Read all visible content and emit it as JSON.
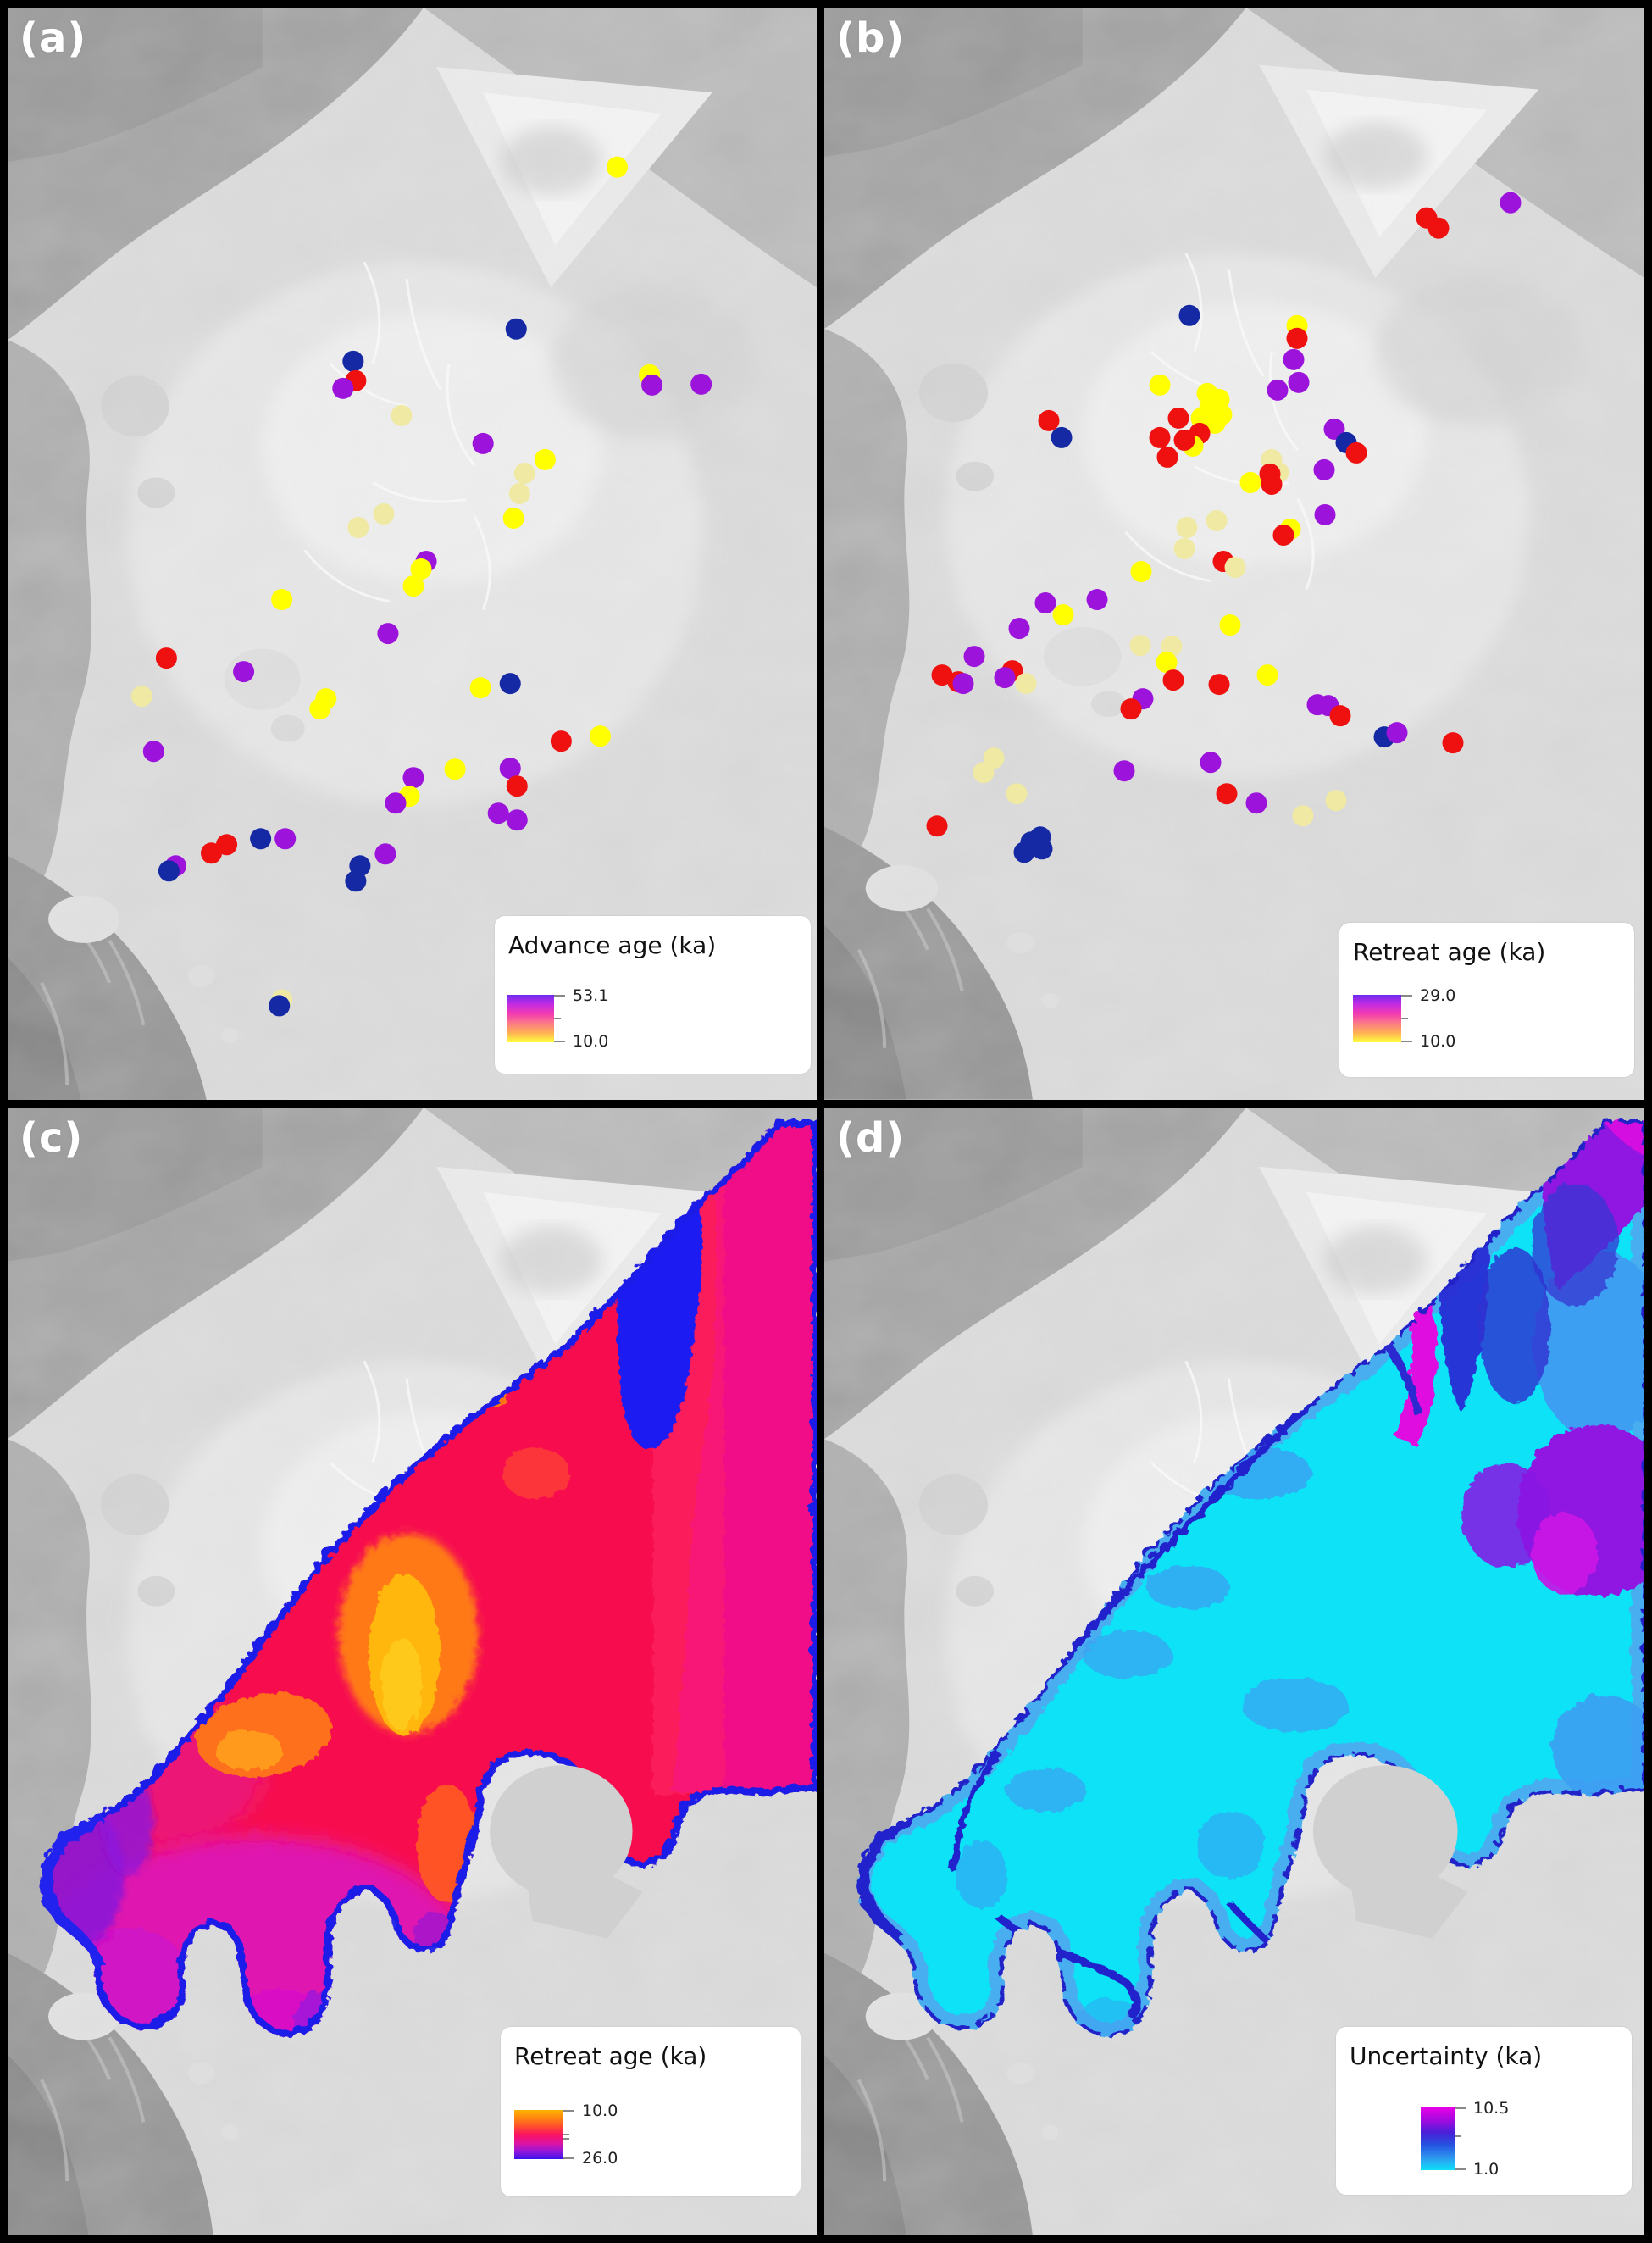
{
  "panels": [
    {
      "id": "a",
      "label": "(a)",
      "legend": {
        "title": "Advance age (ka)",
        "top_tick": "53.1",
        "bottom_tick": "10.0"
      },
      "points": [
        [
          718,
          188,
          "y"
        ],
        [
          599,
          379,
          "n"
        ],
        [
          407,
          417,
          "n"
        ],
        [
          410,
          440,
          "r"
        ],
        [
          395,
          449,
          "m"
        ],
        [
          756,
          433,
          "y"
        ],
        [
          759,
          445,
          "m"
        ],
        [
          817,
          444,
          "m"
        ],
        [
          464,
          481,
          "p"
        ],
        [
          560,
          514,
          "m"
        ],
        [
          633,
          533,
          "y"
        ],
        [
          609,
          549,
          "p"
        ],
        [
          603,
          573,
          "p"
        ],
        [
          596,
          602,
          "y"
        ],
        [
          443,
          597,
          "p"
        ],
        [
          413,
          613,
          "p"
        ],
        [
          493,
          653,
          "m"
        ],
        [
          487,
          662,
          "y"
        ],
        [
          478,
          682,
          "y"
        ],
        [
          323,
          698,
          "y"
        ],
        [
          448,
          738,
          "m"
        ],
        [
          187,
          767,
          "r"
        ],
        [
          278,
          783,
          "m"
        ],
        [
          592,
          797,
          "n"
        ],
        [
          557,
          802,
          "y"
        ],
        [
          158,
          812,
          "p"
        ],
        [
          375,
          815,
          "y"
        ],
        [
          368,
          827,
          "y"
        ],
        [
          698,
          859,
          "y"
        ],
        [
          652,
          865,
          "r"
        ],
        [
          172,
          877,
          "m"
        ],
        [
          527,
          898,
          "y"
        ],
        [
          592,
          897,
          "m"
        ],
        [
          600,
          918,
          "r"
        ],
        [
          478,
          908,
          "m"
        ],
        [
          473,
          930,
          "y"
        ],
        [
          457,
          938,
          "m"
        ],
        [
          578,
          950,
          "m"
        ],
        [
          600,
          958,
          "m"
        ],
        [
          258,
          987,
          "r"
        ],
        [
          298,
          980,
          "n"
        ],
        [
          327,
          980,
          "m"
        ],
        [
          240,
          997,
          "r"
        ],
        [
          445,
          998,
          "m"
        ],
        [
          415,
          1012,
          "n"
        ],
        [
          410,
          1030,
          "n"
        ],
        [
          198,
          1012,
          "m"
        ],
        [
          190,
          1018,
          "n"
        ],
        [
          323,
          1170,
          "p"
        ],
        [
          320,
          1177,
          "n"
        ]
      ]
    },
    {
      "id": "b",
      "label": "(b)",
      "legend": {
        "title": "Retreat age (ka)",
        "top_tick": "29.0",
        "bottom_tick": "10.0"
      },
      "points": [
        [
          810,
          230,
          "m"
        ],
        [
          711,
          248,
          "r"
        ],
        [
          725,
          260,
          "r"
        ],
        [
          431,
          363,
          "n"
        ],
        [
          558,
          375,
          "y"
        ],
        [
          558,
          390,
          "r"
        ],
        [
          554,
          415,
          "m"
        ],
        [
          560,
          442,
          "m"
        ],
        [
          535,
          451,
          "m"
        ],
        [
          396,
          445,
          "y"
        ],
        [
          452,
          455,
          "y"
        ],
        [
          466,
          462,
          "y"
        ],
        [
          455,
          472,
          "y"
        ],
        [
          469,
          480,
          "y"
        ],
        [
          445,
          484,
          "y"
        ],
        [
          461,
          490,
          "y"
        ],
        [
          418,
          484,
          "r"
        ],
        [
          265,
          487,
          "r"
        ],
        [
          280,
          507,
          "n"
        ],
        [
          396,
          507,
          "r"
        ],
        [
          443,
          502,
          "r"
        ],
        [
          435,
          517,
          "y"
        ],
        [
          425,
          510,
          "r"
        ],
        [
          405,
          530,
          "r"
        ],
        [
          602,
          497,
          "m"
        ],
        [
          616,
          513,
          "n"
        ],
        [
          628,
          525,
          "r"
        ],
        [
          590,
          545,
          "m"
        ],
        [
          528,
          533,
          "p"
        ],
        [
          536,
          548,
          "p"
        ],
        [
          526,
          550,
          "r"
        ],
        [
          503,
          560,
          "y"
        ],
        [
          528,
          562,
          "r"
        ],
        [
          591,
          598,
          "m"
        ],
        [
          463,
          605,
          "p"
        ],
        [
          428,
          613,
          "p"
        ],
        [
          550,
          615,
          "y"
        ],
        [
          542,
          622,
          "r"
        ],
        [
          425,
          638,
          "p"
        ],
        [
          471,
          653,
          "r"
        ],
        [
          485,
          660,
          "p"
        ],
        [
          374,
          665,
          "y"
        ],
        [
          261,
          702,
          "m"
        ],
        [
          322,
          698,
          "m"
        ],
        [
          282,
          716,
          "y"
        ],
        [
          230,
          732,
          "m"
        ],
        [
          177,
          765,
          "m"
        ],
        [
          139,
          787,
          "r"
        ],
        [
          158,
          795,
          "r"
        ],
        [
          164,
          797,
          "m"
        ],
        [
          222,
          782,
          "r"
        ],
        [
          213,
          790,
          "m"
        ],
        [
          238,
          797,
          "p"
        ],
        [
          373,
          752,
          "p"
        ],
        [
          410,
          753,
          "p"
        ],
        [
          404,
          772,
          "y"
        ],
        [
          479,
          728,
          "y"
        ],
        [
          412,
          793,
          "r"
        ],
        [
          466,
          798,
          "r"
        ],
        [
          523,
          787,
          "y"
        ],
        [
          376,
          815,
          "m"
        ],
        [
          362,
          827,
          "r"
        ],
        [
          582,
          822,
          "m"
        ],
        [
          595,
          823,
          "m"
        ],
        [
          609,
          835,
          "r"
        ],
        [
          661,
          860,
          "n"
        ],
        [
          676,
          855,
          "m"
        ],
        [
          742,
          867,
          "r"
        ],
        [
          200,
          885,
          "p"
        ],
        [
          188,
          902,
          "p"
        ],
        [
          227,
          927,
          "p"
        ],
        [
          354,
          900,
          "m"
        ],
        [
          456,
          890,
          "m"
        ],
        [
          475,
          927,
          "r"
        ],
        [
          510,
          938,
          "m"
        ],
        [
          604,
          935,
          "p"
        ],
        [
          565,
          953,
          "p"
        ],
        [
          133,
          965,
          "r"
        ],
        [
          255,
          978,
          "n"
        ],
        [
          244,
          984,
          "n"
        ],
        [
          257,
          992,
          "n"
        ],
        [
          236,
          996,
          "n"
        ]
      ]
    },
    {
      "id": "c",
      "label": "(c)",
      "legend": {
        "title": "Retreat age (ka)",
        "top_tick": "10.0",
        "bottom_tick": "26.0"
      },
      "surface": "interpolated retreat-age field: orange-gold core, crimson body, magenta east band and southern lobes, blue patches and blue margin fringe"
    },
    {
      "id": "d",
      "label": "(d)",
      "legend": {
        "title": "Uncertainty (ka)",
        "top_tick": "10.5",
        "bottom_tick": "1.0"
      },
      "surface": "interpolated uncertainty field: cyan body (low), sky-blue patches, dark-blue sinuous margin bands, purple and magenta high-uncertainty region in northeast"
    }
  ],
  "point_colors": {
    "y": "#ffff00",
    "p": "#efe9a3",
    "r": "#ef1010",
    "m": "#9c13db",
    "n": "#1629a4"
  },
  "legend_gradients": {
    "a": [
      "#6f2cee",
      "#c42be2",
      "#f23bb0",
      "#fb7a86",
      "#ffb054",
      "#ffff3c"
    ],
    "b": [
      "#6f2cee",
      "#c42be2",
      "#f23bb0",
      "#fb7a86",
      "#ffb054",
      "#ffff3c"
    ],
    "c": [
      "#ffb400",
      "#ff8510",
      "#ff4f2e",
      "#fb1260",
      "#e0139e",
      "#9a15d8",
      "#3a14ec"
    ],
    "d": [
      "#e700e7",
      "#a50ae0",
      "#4a1fd8",
      "#2453e0",
      "#2e96f0",
      "#0fe0f8"
    ]
  }
}
